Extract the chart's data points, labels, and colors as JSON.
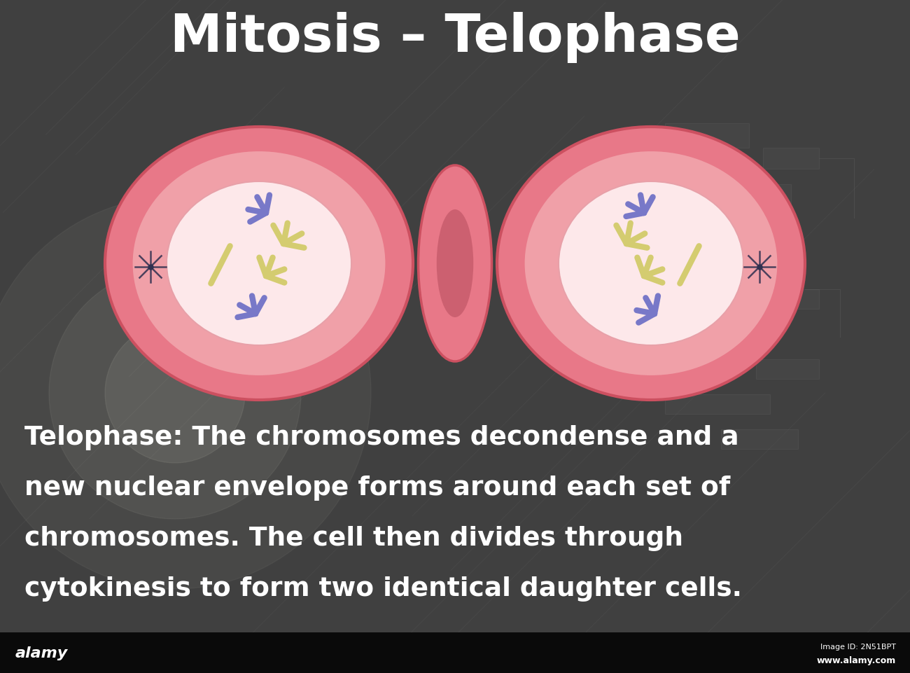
{
  "title": "Mitosis – Telophase",
  "title_fontsize": 54,
  "title_color": "#ffffff",
  "bg_color": "#404040",
  "description": "Telophase: The chromosomes decondense and a\nnew nuclear envelope forms around each set of\nchromosomes. The cell then divides through\ncytokinesis to form two identical daughter cells.",
  "desc_fontsize": 27,
  "desc_color": "#ffffff",
  "outer_cell_color": "#e87888",
  "outer_cell_color2": "#cc6070",
  "mid_cell_color": "#f0a0a8",
  "inner_cell_color": "#fde8ea",
  "cell_border_color": "#cc5060",
  "chromosome_yellow": "#d4cc70",
  "chromosome_purple": "#7878c8",
  "aster_color": "#303050",
  "footer_bg": "#0a0a0a",
  "footer_text_left": "alamy",
  "footer_text_right_line1": "Image ID: 2N51BPT",
  "footer_text_right_line2": "www.alamy.com"
}
